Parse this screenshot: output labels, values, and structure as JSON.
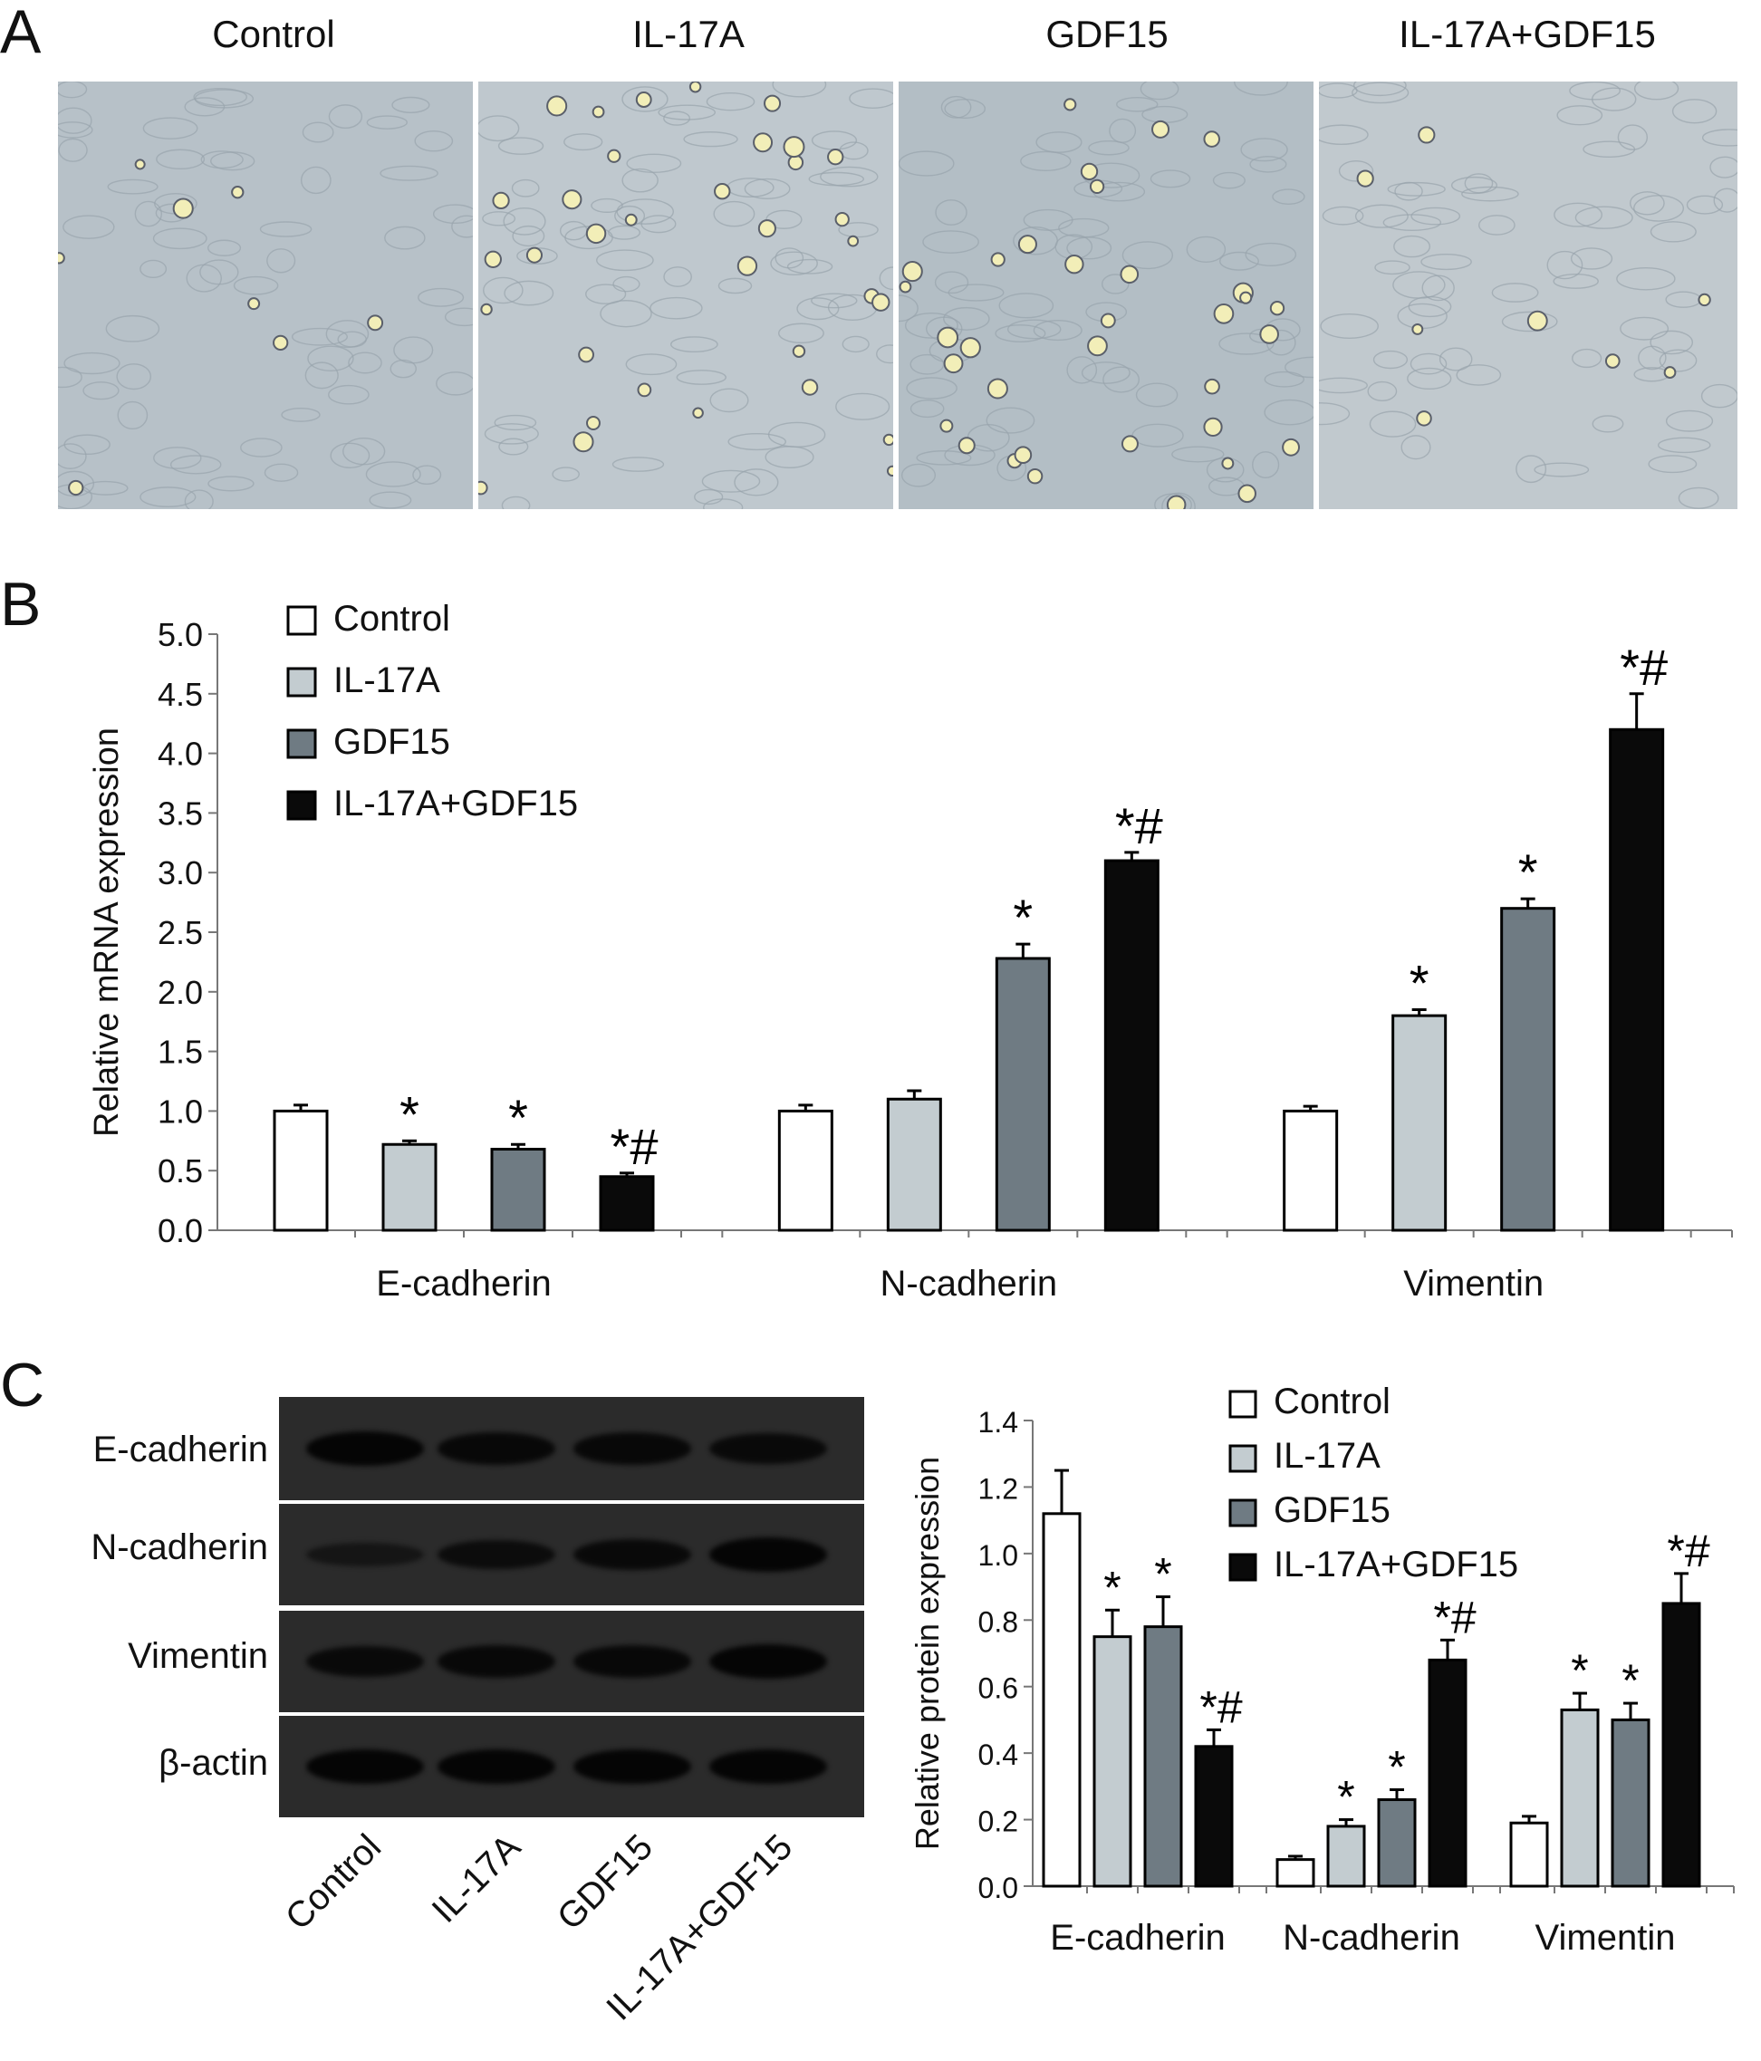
{
  "panels": {
    "a": "A",
    "b": "B",
    "c": "C"
  },
  "panel_a": {
    "labels": [
      "Control",
      "IL-17A",
      "GDF15",
      "IL-17A+GDF15"
    ],
    "images": [
      {
        "name": "control-micrograph",
        "bg": "#b7c1c8",
        "rounded_cells": "few"
      },
      {
        "name": "il17a-micrograph",
        "bg": "#bfc8ce",
        "rounded_cells": "many"
      },
      {
        "name": "gdf15-micrograph",
        "bg": "#b3bec5",
        "rounded_cells": "many"
      },
      {
        "name": "il17a-gdf15-micrograph",
        "bg": "#c1c9ce",
        "rounded_cells": "few"
      }
    ]
  },
  "panel_c_blot": {
    "rows": [
      "E-cadherin",
      "N-cadherin",
      "Vimentin",
      "β-actin"
    ],
    "lanes": [
      "Control",
      "IL-17A",
      "GDF15",
      "IL-17A+GDF15"
    ],
    "band_intensity": [
      [
        1.0,
        0.85,
        0.85,
        0.8
      ],
      [
        0.35,
        0.7,
        0.8,
        1.0
      ],
      [
        0.8,
        0.85,
        0.85,
        1.0
      ],
      [
        1.0,
        1.0,
        1.0,
        1.0
      ]
    ]
  },
  "colors": {
    "control": "#ffffff",
    "il17a": "#c3ccd0",
    "gdf15": "#6f7b83",
    "combo": "#0a0a0a"
  },
  "chart_data": [
    {
      "type": "bar",
      "ylabel": "Relative mRNA expression",
      "ylim": [
        0.0,
        5.0
      ],
      "yticks": [
        "0.0",
        "0.5",
        "1.0",
        "1.5",
        "2.0",
        "2.5",
        "3.0",
        "3.5",
        "4.0",
        "4.5",
        "5.0"
      ],
      "categories": [
        "E-cadherin",
        "N-cadherin",
        "Vimentin"
      ],
      "legend_position": "top-left",
      "series": [
        {
          "name": "Control",
          "values": [
            1.0,
            1.0,
            1.0
          ],
          "errors": [
            0.05,
            0.05,
            0.04
          ],
          "marks": [
            "",
            "",
            ""
          ]
        },
        {
          "name": "IL-17A",
          "values": [
            0.72,
            1.1,
            1.8
          ],
          "errors": [
            0.03,
            0.07,
            0.05
          ],
          "marks": [
            "*",
            "",
            "*"
          ]
        },
        {
          "name": "GDF15",
          "values": [
            0.68,
            2.28,
            2.7
          ],
          "errors": [
            0.04,
            0.12,
            0.08
          ],
          "marks": [
            "*",
            "*",
            "*"
          ]
        },
        {
          "name": "IL-17A+GDF15",
          "values": [
            0.45,
            3.1,
            4.2
          ],
          "errors": [
            0.03,
            0.07,
            0.3
          ],
          "marks": [
            "*#",
            "*#",
            "*#"
          ]
        }
      ]
    },
    {
      "type": "bar",
      "ylabel": "Relative protein expression",
      "ylim": [
        0.0,
        1.4
      ],
      "yticks": [
        "0.0",
        "0.2",
        "0.4",
        "0.6",
        "0.8",
        "1.0",
        "1.2",
        "1.4"
      ],
      "categories": [
        "E-cadherin",
        "N-cadherin",
        "Vimentin"
      ],
      "legend_position": "top-right",
      "series": [
        {
          "name": "Control",
          "values": [
            1.12,
            0.08,
            0.19
          ],
          "errors": [
            0.13,
            0.01,
            0.02
          ],
          "marks": [
            "",
            "",
            ""
          ]
        },
        {
          "name": "IL-17A",
          "values": [
            0.75,
            0.18,
            0.53
          ],
          "errors": [
            0.08,
            0.02,
            0.05
          ],
          "marks": [
            "*",
            "*",
            "*"
          ]
        },
        {
          "name": "GDF15",
          "values": [
            0.78,
            0.26,
            0.5
          ],
          "errors": [
            0.09,
            0.03,
            0.05
          ],
          "marks": [
            "*",
            "*",
            "*"
          ]
        },
        {
          "name": "IL-17A+GDF15",
          "values": [
            0.42,
            0.68,
            0.85
          ],
          "errors": [
            0.05,
            0.06,
            0.09
          ],
          "marks": [
            "*#",
            "*#",
            "*#"
          ]
        }
      ]
    }
  ]
}
